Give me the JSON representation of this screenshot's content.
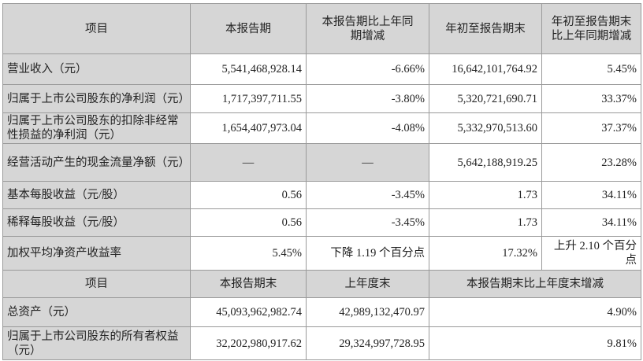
{
  "header1": [
    "项目",
    "本报告期",
    "本报告期比上年同期增减",
    "年初至报告期末",
    "年初至报告期末比上年同期增减"
  ],
  "rows1": [
    {
      "label": "营业收入（元）",
      "v": [
        "5,541,468,928.14",
        "-6.66%",
        "16,642,101,764.92",
        "5.45%"
      ]
    },
    {
      "label": "归属于上市公司股东的净利润（元）",
      "v": [
        "1,717,397,711.55",
        "-3.80%",
        "5,320,721,690.71",
        "33.37%"
      ]
    },
    {
      "label": "归属于上市公司股东的扣除非经常性损益的净利润（元）",
      "v": [
        "1,654,407,973.04",
        "-4.08%",
        "5,332,970,513.60",
        "37.37%"
      ]
    },
    {
      "label": "经营活动产生的现金流量净额（元）",
      "v": [
        "—",
        "—",
        "5,642,188,919.25",
        "23.28%"
      ]
    },
    {
      "label": "基本每股收益（元/股）",
      "v": [
        "0.56",
        "-3.45%",
        "1.73",
        "34.11%"
      ]
    },
    {
      "label": "稀释每股收益（元/股）",
      "v": [
        "0.56",
        "-3.45%",
        "1.73",
        "34.11%"
      ]
    },
    {
      "label": "加权平均净资产收益率",
      "v": [
        "5.45%",
        "下降 1.19 个百分点",
        "17.32%",
        "上升 2.10 个百分点"
      ]
    }
  ],
  "header2": [
    "项目",
    "本报告期末",
    "上年度末",
    "本报告期末比上年度末增减"
  ],
  "rows2": [
    {
      "label": "总资产（元）",
      "v": [
        "45,093,962,982.74",
        "42,989,132,470.97",
        "4.90%"
      ]
    },
    {
      "label": "归属于上市公司股东的所有者权益（元）",
      "v": [
        "32,202,980,917.62",
        "29,324,997,728.95",
        "9.81%"
      ]
    }
  ],
  "colors": {
    "header_bg": "#d6d6d6",
    "border": "#9a9a9a"
  }
}
